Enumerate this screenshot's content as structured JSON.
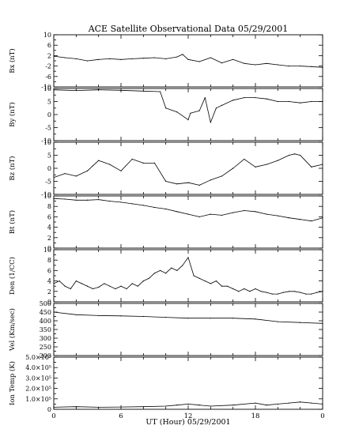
{
  "title": "ACE Satellite Observational Data   05/29/2001",
  "xlabel": "UT (Hour)   05/29/2001",
  "x_ticks": [
    "0",
    "6",
    "12",
    "18",
    "0"
  ],
  "chart_data": [
    {
      "type": "line",
      "ylabel": "Bx (nT)",
      "yticks": [
        "10",
        "6",
        "2",
        "-2",
        "-6",
        "-10"
      ],
      "ylim": [
        -10,
        10
      ],
      "x": [
        0,
        1,
        2,
        3,
        4,
        5,
        6,
        7,
        8,
        9,
        10,
        11,
        11.5,
        12,
        13,
        14,
        15,
        16,
        17,
        18,
        19,
        20,
        21,
        22,
        23,
        24
      ],
      "y": [
        1.8,
        1.2,
        0.8,
        0,
        0.5,
        0.8,
        0.5,
        0.8,
        1,
        1.2,
        0.8,
        1.5,
        2.5,
        0.5,
        -0.3,
        1.2,
        -0.8,
        0.5,
        -1,
        -1.5,
        -1,
        -1.5,
        -2,
        -2,
        -2.2,
        -2.5
      ]
    },
    {
      "type": "line",
      "ylabel": "By (nT)",
      "yticks": [
        "10",
        "5",
        "0",
        "-5",
        "-10"
      ],
      "ylim": [
        -10,
        10
      ],
      "x": [
        0,
        2,
        4,
        6,
        8,
        9.5,
        10,
        11,
        12,
        12.2,
        13,
        13.5,
        14,
        14.5,
        15,
        16,
        17,
        18,
        19,
        20,
        21,
        22,
        23,
        24
      ],
      "y": [
        9.5,
        9.2,
        9.5,
        9.3,
        9.0,
        8.8,
        2.5,
        1.0,
        -2.0,
        0.5,
        1.5,
        6.5,
        -3.0,
        2.5,
        3.5,
        5.5,
        6.5,
        6.5,
        6.0,
        5.0,
        5.0,
        4.5,
        5.0,
        5.0
      ]
    },
    {
      "type": "line",
      "ylabel": "Bz (nT)",
      "yticks": [
        "10",
        "5",
        "0",
        "-5",
        "-10"
      ],
      "ylim": [
        -10,
        10
      ],
      "x": [
        0,
        1,
        2,
        3,
        3.5,
        4,
        5,
        6,
        7,
        8,
        9,
        10,
        11,
        12,
        13,
        14,
        15,
        16,
        17,
        18,
        19,
        20,
        21,
        21.5,
        22,
        23,
        24
      ],
      "y": [
        -3.5,
        -2.0,
        -3.0,
        -1.0,
        1.0,
        3.0,
        1.5,
        -1.0,
        3.5,
        2.0,
        2.0,
        -5.0,
        -6.0,
        -5.5,
        -6.5,
        -4.5,
        -3.0,
        0.0,
        3.5,
        0.5,
        1.5,
        3.0,
        5.0,
        5.5,
        5.0,
        0.5,
        1.5
      ]
    },
    {
      "type": "line",
      "ylabel": "Bt (nT)",
      "yticks": [
        "10",
        "8",
        "6",
        "4",
        "2",
        "0"
      ],
      "ylim": [
        0,
        10
      ],
      "x": [
        0,
        1,
        2,
        3,
        4,
        5,
        6,
        7,
        8,
        9,
        10,
        11,
        12,
        13,
        14,
        15,
        16,
        17,
        18,
        19,
        20,
        21,
        22,
        23,
        24
      ],
      "y": [
        9.5,
        9.4,
        9.2,
        9.2,
        9.3,
        9.0,
        8.8,
        8.5,
        8.2,
        7.8,
        7.5,
        7.0,
        6.5,
        6.0,
        6.5,
        6.3,
        6.8,
        7.2,
        7.0,
        6.5,
        6.2,
        5.8,
        5.5,
        5.2,
        5.8
      ]
    },
    {
      "type": "line",
      "ylabel": "Den (1/CC)",
      "yticks": [
        "10",
        "8",
        "6",
        "4",
        "2",
        "0"
      ],
      "ylim": [
        0,
        10
      ],
      "x": [
        0,
        0.5,
        1,
        1.5,
        2,
        2.5,
        3,
        3.5,
        4,
        4.5,
        5,
        5.5,
        6,
        6.5,
        7,
        7.5,
        8,
        8.5,
        9,
        9.5,
        10,
        10.5,
        11,
        11.5,
        12,
        12.5,
        13,
        13.5,
        14,
        14.5,
        15,
        15.5,
        16,
        16.5,
        17,
        17.5,
        18,
        18.5,
        19,
        19.5,
        20,
        20.5,
        21,
        21.5,
        22,
        22.5,
        23,
        23.5,
        24
      ],
      "y": [
        3.5,
        4.0,
        3.0,
        2.5,
        4.0,
        3.5,
        3.0,
        2.5,
        2.8,
        3.5,
        3.0,
        2.5,
        3.0,
        2.5,
        3.5,
        3.0,
        4.0,
        4.5,
        5.5,
        6.0,
        5.5,
        6.5,
        6.0,
        7.0,
        8.5,
        5.0,
        4.5,
        4.0,
        3.5,
        4.0,
        3.0,
        3.0,
        2.5,
        2.0,
        2.5,
        2.0,
        2.5,
        2.0,
        1.8,
        1.5,
        1.5,
        1.8,
        2.0,
        2.0,
        1.8,
        1.5,
        1.5,
        1.8,
        2.0
      ]
    },
    {
      "type": "line",
      "ylabel": "Vel (Km/sec)",
      "yticks": [
        "500",
        "450",
        "400",
        "350",
        "300",
        "250",
        "200"
      ],
      "ylim": [
        200,
        500
      ],
      "x": [
        0,
        2,
        4,
        6,
        8,
        10,
        12,
        14,
        16,
        18,
        20,
        22,
        24
      ],
      "y": [
        450,
        435,
        430,
        428,
        425,
        420,
        415,
        415,
        415,
        410,
        395,
        390,
        385
      ]
    },
    {
      "type": "line",
      "ylabel": "Ion Temp (K)",
      "yticks": [
        "5.0×10⁵",
        "4.0×10⁵",
        "3.0×10⁵",
        "2.0×10⁵",
        "1.0×10⁵",
        "0"
      ],
      "ylim": [
        0,
        500000
      ],
      "x": [
        0,
        2,
        4,
        6,
        8,
        10,
        11,
        12,
        13,
        14,
        16,
        18,
        19,
        20,
        21,
        22,
        23,
        24
      ],
      "y": [
        20000,
        25000,
        20000,
        22000,
        25000,
        30000,
        40000,
        50000,
        40000,
        30000,
        40000,
        60000,
        40000,
        50000,
        60000,
        70000,
        60000,
        50000
      ]
    }
  ]
}
